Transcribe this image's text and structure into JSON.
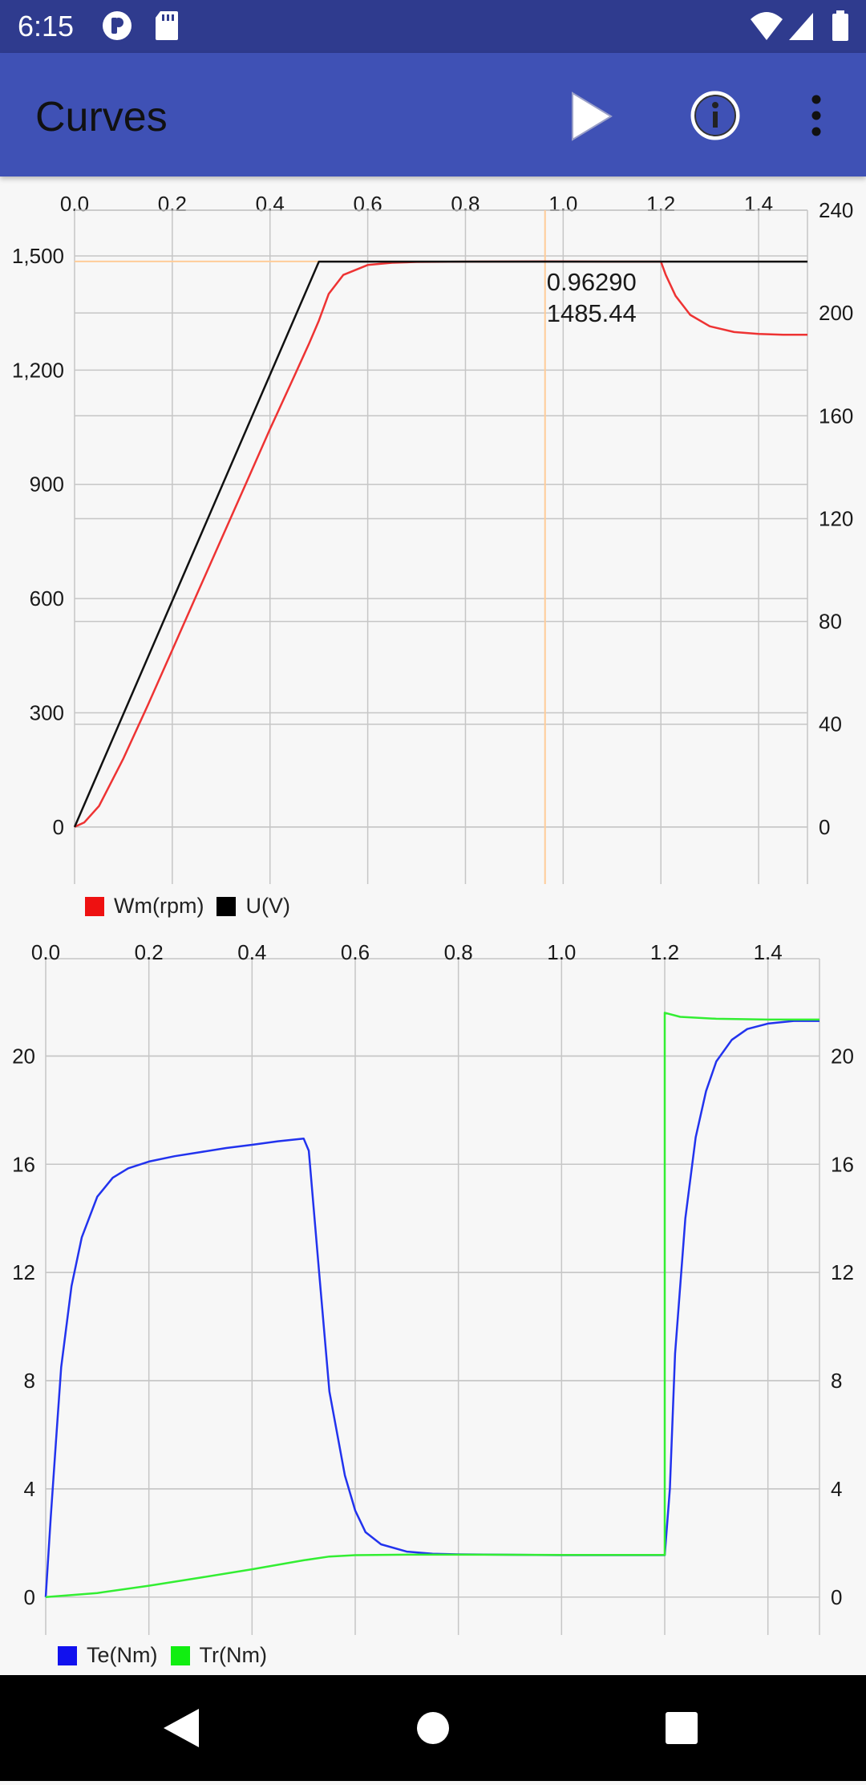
{
  "status_bar": {
    "time": "6:15",
    "left_icons": [
      "notification-app-icon",
      "sd-card-icon"
    ],
    "right_icons": [
      "wifi-icon",
      "cell-signal-icon",
      "battery-icon"
    ]
  },
  "app_bar": {
    "title": "Curves",
    "actions": [
      "play-icon",
      "info-icon",
      "more-vert-icon"
    ]
  },
  "navigation_bar": {
    "buttons": [
      "back-icon",
      "home-icon",
      "recents-icon"
    ]
  },
  "colors": {
    "status_bar": "#2f3b8e",
    "app_bar": "#3f51b5",
    "plot_background": "#f7f7f7",
    "grid": "#c6c6c6",
    "cursor": "#ffcc99"
  },
  "chart_data": [
    {
      "type": "line",
      "x_ticks": [
        "0.0",
        "0.2",
        "0.4",
        "0.6",
        "0.8",
        "1.0",
        "1.2",
        "1.4"
      ],
      "x_axis_position": "top",
      "xlim": [
        0.0,
        1.5
      ],
      "y_left": {
        "ticks": [
          "0",
          "300",
          "600",
          "900",
          "1,200",
          "1,500"
        ],
        "range": [
          -150,
          1620
        ]
      },
      "y_right": {
        "ticks": [
          "0",
          "40",
          "80",
          "120",
          "160",
          "200",
          "240"
        ],
        "range": [
          -22.2,
          240
        ]
      },
      "grid": true,
      "legend_position": "bottom-left",
      "series": [
        {
          "name": "Wm(rpm)",
          "color": "#ee3333",
          "axis": "left",
          "x": [
            0,
            0.02,
            0.05,
            0.1,
            0.15,
            0.2,
            0.25,
            0.3,
            0.35,
            0.4,
            0.45,
            0.48,
            0.5,
            0.52,
            0.55,
            0.6,
            0.65,
            0.7,
            0.8,
            0.96,
            1.1,
            1.2,
            1.21,
            1.23,
            1.26,
            1.3,
            1.35,
            1.4,
            1.45,
            1.5
          ],
          "y": [
            0,
            12,
            55,
            180,
            320,
            465,
            610,
            755,
            900,
            1045,
            1185,
            1270,
            1330,
            1400,
            1450,
            1476,
            1482,
            1484,
            1485,
            1485.44,
            1485,
            1485,
            1450,
            1395,
            1345,
            1315,
            1300,
            1295,
            1293,
            1293
          ]
        },
        {
          "name": "U(V)",
          "color": "#111111",
          "axis": "right",
          "x": [
            0,
            0.5,
            1.5
          ],
          "y": [
            0,
            220,
            220
          ]
        }
      ],
      "annotation": {
        "lines": [
          "0.96290",
          "1485.44"
        ],
        "cursor_x": 0.9629,
        "cursor_y": 1485.44
      }
    },
    {
      "type": "line",
      "x_ticks": [
        "0.0",
        "0.2",
        "0.4",
        "0.6",
        "0.8",
        "1.0",
        "1.2",
        "1.4"
      ],
      "x_axis_position": "top",
      "xlim": [
        0.0,
        1.5
      ],
      "y_left": {
        "ticks": [
          "0",
          "4",
          "8",
          "12",
          "16",
          "20"
        ],
        "range": [
          -1.4,
          23.6
        ]
      },
      "y_right": {
        "ticks": [
          "0",
          "4",
          "8",
          "12",
          "16",
          "20"
        ],
        "range": [
          -1.4,
          23.6
        ]
      },
      "grid": true,
      "legend_position": "bottom-left",
      "series": [
        {
          "name": "Te(Nm)",
          "color": "#2233ee",
          "axis": "left",
          "x": [
            0,
            0.01,
            0.02,
            0.03,
            0.05,
            0.07,
            0.1,
            0.13,
            0.16,
            0.2,
            0.25,
            0.3,
            0.35,
            0.4,
            0.45,
            0.5,
            0.51,
            0.53,
            0.55,
            0.58,
            0.6,
            0.62,
            0.65,
            0.7,
            0.75,
            0.8,
            1.0,
            1.2,
            1.21,
            1.22,
            1.24,
            1.26,
            1.28,
            1.3,
            1.33,
            1.36,
            1.4,
            1.45,
            1.5
          ],
          "y": [
            0,
            3,
            5.8,
            8.5,
            11.5,
            13.3,
            14.8,
            15.5,
            15.85,
            16.1,
            16.3,
            16.45,
            16.6,
            16.72,
            16.85,
            16.95,
            16.5,
            12,
            7.6,
            4.5,
            3.2,
            2.4,
            1.95,
            1.68,
            1.6,
            1.58,
            1.55,
            1.55,
            4,
            9,
            14,
            17,
            18.7,
            19.8,
            20.6,
            21,
            21.2,
            21.3,
            21.3
          ]
        },
        {
          "name": "Tr(Nm)",
          "color": "#33ee33",
          "axis": "left",
          "x": [
            0,
            0.1,
            0.2,
            0.3,
            0.4,
            0.5,
            0.55,
            0.6,
            0.7,
            0.8,
            1.0,
            1.2,
            1.2,
            1.23,
            1.3,
            1.4,
            1.5
          ],
          "y": [
            0,
            0.15,
            0.42,
            0.72,
            1.03,
            1.36,
            1.5,
            1.55,
            1.57,
            1.57,
            1.56,
            1.56,
            21.6,
            21.45,
            21.38,
            21.35,
            21.35
          ]
        }
      ]
    }
  ]
}
